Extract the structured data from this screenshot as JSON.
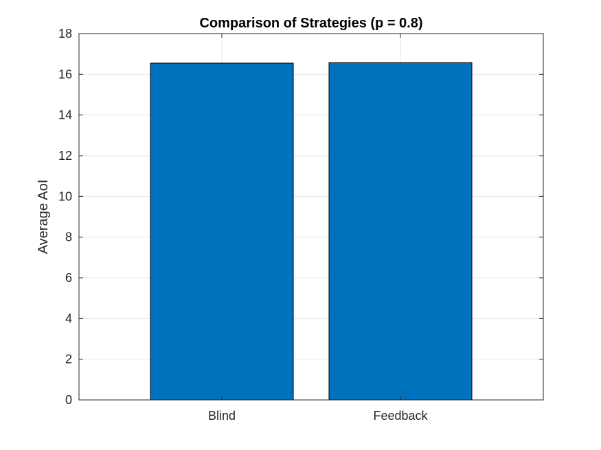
{
  "chart_data": {
    "type": "bar",
    "title": "Comparison of Strategies (p = 0.8)",
    "xlabel": "",
    "ylabel": "Average AoI",
    "categories": [
      "Blind",
      "Feedback"
    ],
    "values": [
      16.55,
      16.57
    ],
    "ylim": [
      0,
      18
    ],
    "yticks": [
      "0",
      "2",
      "4",
      "6",
      "8",
      "10",
      "12",
      "14",
      "16",
      "18"
    ],
    "grid": true,
    "legend": "none",
    "colors": {
      "bar_fill": "#0072BD",
      "bar_edge": "#000000",
      "grid": "#e6e6e6",
      "axis": "#262626"
    }
  }
}
